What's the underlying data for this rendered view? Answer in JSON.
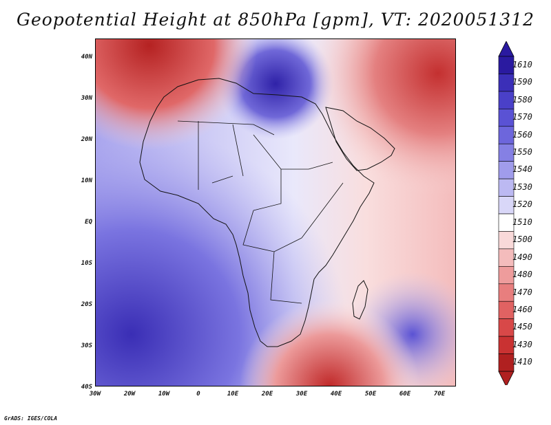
{
  "title": "Geopotential Height at 850hPa [gpm], VT: 2020051312",
  "credit": "GrADS: IGES/COLA",
  "y_axis_labels": [
    "40N",
    "30N",
    "20N",
    "10N",
    "EQ",
    "10S",
    "20S",
    "30S",
    "40S"
  ],
  "x_axis_labels": [
    "30W",
    "20W",
    "10W",
    "0",
    "10E",
    "20E",
    "30E",
    "40E",
    "50E",
    "60E",
    "70E"
  ],
  "colorbar": {
    "levels": [
      "1610",
      "1590",
      "1580",
      "1570",
      "1560",
      "1550",
      "1540",
      "1530",
      "1520",
      "1510",
      "1500",
      "1490",
      "1480",
      "1470",
      "1460",
      "1450",
      "1430",
      "1410"
    ],
    "colors": [
      "#2a1aa0",
      "#3b2fb8",
      "#4a40c8",
      "#5a52d4",
      "#6d66dc",
      "#8580e4",
      "#a09ceb",
      "#bcb9f2",
      "#d9d7f8",
      "#ffffff",
      "#f9d9d9",
      "#f4bcbc",
      "#ee9c9c",
      "#e87e7e",
      "#e06262",
      "#d84848",
      "#c93232",
      "#b02020"
    ]
  }
}
